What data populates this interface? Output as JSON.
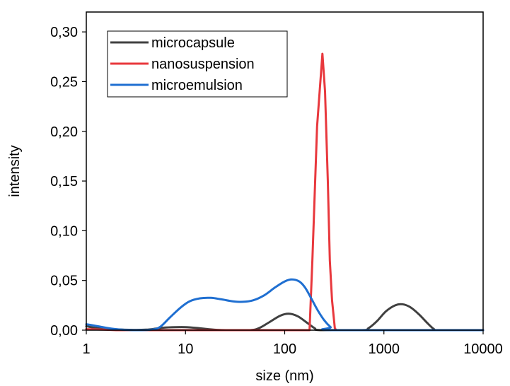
{
  "chart_data": {
    "type": "line",
    "xlabel": "size (nm)",
    "ylabel": "intensity",
    "x_scale": "log",
    "xlim": [
      1,
      10000
    ],
    "ylim": [
      0,
      0.32
    ],
    "x_ticks": [
      1,
      10,
      100,
      1000,
      10000
    ],
    "x_tick_labels": [
      "1",
      "10",
      "100",
      "1000",
      "10000"
    ],
    "y_ticks": [
      0,
      0.05,
      0.1,
      0.15,
      0.2,
      0.25,
      0.3
    ],
    "y_tick_labels": [
      "0,00",
      "0,05",
      "0,10",
      "0,15",
      "0,20",
      "0,25",
      "0,30"
    ],
    "grid": false,
    "legend_position": "top-left",
    "series": [
      {
        "name": "microcapsule",
        "color": "#404040",
        "points": [
          [
            1,
            0.004
          ],
          [
            1.3,
            0.002
          ],
          [
            2,
            0.0008
          ],
          [
            3,
            0.0003
          ],
          [
            4,
            0.0005
          ],
          [
            5,
            0.0015
          ],
          [
            6,
            0.0025
          ],
          [
            8,
            0.003
          ],
          [
            10,
            0.003
          ],
          [
            13,
            0.0022
          ],
          [
            17,
            0.001
          ],
          [
            22,
            0.0002
          ],
          [
            28,
            0
          ],
          [
            45,
            0
          ],
          [
            55,
            0.002
          ],
          [
            70,
            0.008
          ],
          [
            90,
            0.0145
          ],
          [
            110,
            0.0165
          ],
          [
            135,
            0.014
          ],
          [
            165,
            0.008
          ],
          [
            200,
            0.002
          ],
          [
            230,
            0
          ],
          [
            600,
            0
          ],
          [
            700,
            0.002
          ],
          [
            850,
            0.009
          ],
          [
            1050,
            0.019
          ],
          [
            1300,
            0.025
          ],
          [
            1550,
            0.026
          ],
          [
            1850,
            0.023
          ],
          [
            2250,
            0.016
          ],
          [
            2750,
            0.007
          ],
          [
            3200,
            0.001
          ],
          [
            3500,
            0
          ],
          [
            10000,
            0
          ]
        ]
      },
      {
        "name": "nanosuspension",
        "color": "#e8383d",
        "points": [
          [
            1,
            0.001
          ],
          [
            1.5,
            0.0005
          ],
          [
            2,
            0
          ],
          [
            178,
            0
          ],
          [
            190,
            0.07
          ],
          [
            212,
            0.205
          ],
          [
            240,
            0.278
          ],
          [
            255,
            0.24
          ],
          [
            272,
            0.15
          ],
          [
            285,
            0.07
          ],
          [
            300,
            0.03
          ],
          [
            320,
            0.002
          ],
          [
            330,
            0
          ],
          [
            10000,
            0
          ]
        ]
      },
      {
        "name": "microemulsion",
        "color": "#1f6fd1",
        "points": [
          [
            1,
            0.006
          ],
          [
            1.3,
            0.004
          ],
          [
            1.8,
            0.0015
          ],
          [
            2.5,
            0.0003
          ],
          [
            3.5,
            0
          ],
          [
            4.5,
            0.0005
          ],
          [
            5.5,
            0.003
          ],
          [
            7,
            0.013
          ],
          [
            9,
            0.023
          ],
          [
            11,
            0.029
          ],
          [
            14,
            0.032
          ],
          [
            18,
            0.0325
          ],
          [
            23,
            0.031
          ],
          [
            30,
            0.029
          ],
          [
            38,
            0.0285
          ],
          [
            48,
            0.03
          ],
          [
            62,
            0.035
          ],
          [
            80,
            0.043
          ],
          [
            100,
            0.049
          ],
          [
            118,
            0.051
          ],
          [
            140,
            0.049
          ],
          [
            160,
            0.043
          ],
          [
            185,
            0.032
          ],
          [
            215,
            0.02
          ],
          [
            250,
            0.01
          ],
          [
            290,
            0.003
          ],
          [
            320,
            0
          ],
          [
            10000,
            0
          ]
        ]
      }
    ]
  }
}
